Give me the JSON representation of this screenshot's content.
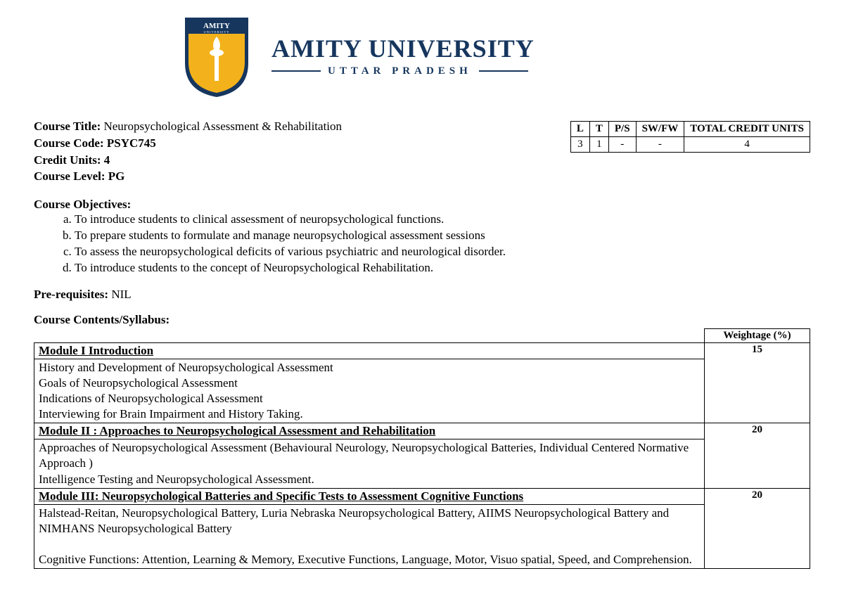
{
  "logo": {
    "shield_border": "#16365e",
    "shield_fill": "#f3b21b",
    "banner_fill": "#16365e",
    "banner_text": "AMITY",
    "banner_sub": "UNIVERSITY",
    "name": "AMITY UNIVERSITY",
    "subtitle": "UTTAR PRADESH"
  },
  "course": {
    "title_label": "Course Title:",
    "title": "Neuropsychological Assessment & Rehabilitation",
    "code_label": "Course Code:",
    "code": "PSYC745",
    "units_label": "Credit Units:",
    "units": "4",
    "level_label": "Course Level:",
    "level": "PG"
  },
  "credit_table": {
    "headers": [
      "L",
      "T",
      "P/S",
      "SW/FW",
      "TOTAL CREDIT UNITS"
    ],
    "row": [
      "3",
      "1",
      "-",
      "-",
      "4"
    ]
  },
  "objectives_label": "Course Objectives:",
  "objectives": [
    "To introduce students to clinical assessment of neuropsychological functions.",
    "To prepare students to formulate and manage neuropsychological assessment sessions",
    "To assess the neuropsychological deficits of various psychiatric and neurological disorder.",
    "To introduce students to the concept of Neuropsychological Rehabilitation."
  ],
  "prereq_label": "Pre-requisites:",
  "prereq": "NIL",
  "syllabus_label": "Course Contents/Syllabus:",
  "weight_header": "Weightage (%)",
  "modules": [
    {
      "title": "Module I  Introduction",
      "weight": "15",
      "body": "History and Development of Neuropsychological Assessment\nGoals of Neuropsychological Assessment\nIndications of Neuropsychological Assessment\nInterviewing for Brain Impairment and History Taking."
    },
    {
      "title": "Module II : Approaches to Neuropsychological Assessment and Rehabilitation",
      "weight": "20",
      "body": "Approaches of Neuropsychological Assessment (Behavioural Neurology, Neuropsychological Batteries, Individual Centered Normative Approach  )\nIntelligence Testing and Neuropsychological Assessment."
    },
    {
      "title": "Module III: Neuropsychological Batteries and Specific Tests to Assessment Cognitive Functions",
      "weight": "20",
      "body": "Halstead-Reitan, Neuropsychological Battery, Luria Nebraska Neuropsychological Battery, AIIMS Neuropsychological Battery and NIMHANS Neuropsychological Battery\n\nCognitive Functions: Attention, Learning & Memory, Executive Functions, Language, Motor, Visuo spatial, Speed, and Comprehension."
    }
  ]
}
